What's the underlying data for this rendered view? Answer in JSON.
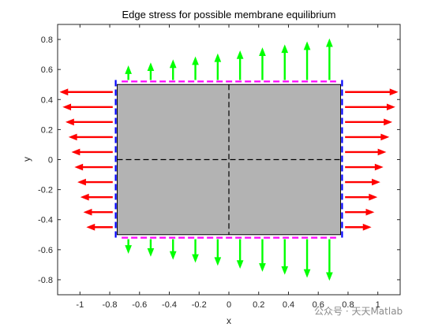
{
  "chart_data": {
    "type": "vector-field",
    "title": "Edge stress for possible membrane equilibrium",
    "xlabel": "x",
    "ylabel": "y",
    "xlim": [
      -1.15,
      1.15
    ],
    "ylim": [
      -0.9,
      0.9
    ],
    "xticks": [
      -1,
      -0.8,
      -0.6,
      -0.4,
      -0.2,
      0,
      0.2,
      0.4,
      0.6,
      0.8,
      1
    ],
    "yticks": [
      -0.8,
      -0.6,
      -0.4,
      -0.2,
      0,
      0.2,
      0.4,
      0.6,
      0.8
    ],
    "xtick_labels": [
      "-1",
      "-0.8",
      "-0.6",
      "-0.4",
      "-0.2",
      "0",
      "0.2",
      "0.4",
      "0.6",
      "0.8",
      "1"
    ],
    "ytick_labels": [
      "-0.8",
      "-0.6",
      "-0.4",
      "-0.2",
      "0",
      "0.2",
      "0.4",
      "0.6",
      "0.8"
    ],
    "grid": false,
    "membrane": {
      "x": [
        -0.75,
        0.75
      ],
      "y": [
        -0.5,
        0.5
      ],
      "fill": "#b3b3b3",
      "edge": "#000000"
    },
    "centerlines": {
      "color": "#000000",
      "style": "dashed"
    },
    "boundaries": {
      "left_right": {
        "color": "#0000ff",
        "style": "dashed",
        "x": [
          -0.76,
          0.76
        ]
      },
      "top_bottom": {
        "color": "#ff00ff",
        "style": "dashed",
        "y": [
          0.52,
          -0.52
        ]
      }
    },
    "arrows": {
      "horizontal": {
        "color": "#ff0000",
        "y": [
          0.45,
          0.35,
          0.25,
          0.15,
          0.05,
          -0.05,
          -0.15,
          -0.25,
          -0.35,
          -0.45
        ],
        "left_tip_x": [
          -1.13,
          -1.11,
          -1.09,
          -1.07,
          -1.05,
          -1.03,
          -1.01,
          -0.99,
          -0.97,
          -0.95
        ],
        "right_tip_x": [
          1.13,
          1.11,
          1.09,
          1.07,
          1.05,
          1.03,
          1.01,
          0.99,
          0.97,
          0.95
        ],
        "start_x": [
          -0.78,
          0.78
        ]
      },
      "vertical": {
        "color": "#00ff00",
        "x": [
          -0.675,
          -0.525,
          -0.375,
          -0.225,
          -0.075,
          0.075,
          0.225,
          0.375,
          0.525,
          0.675
        ],
        "top_tip_y": [
          0.62,
          0.64,
          0.66,
          0.68,
          0.7,
          0.72,
          0.74,
          0.76,
          0.78,
          0.8
        ],
        "bottom_tip_y": [
          -0.62,
          -0.64,
          -0.66,
          -0.68,
          -0.7,
          -0.72,
          -0.74,
          -0.76,
          -0.78,
          -0.8
        ],
        "start_y": [
          0.53,
          -0.53
        ]
      }
    }
  },
  "watermark": "公众号 · 天天Matlab"
}
